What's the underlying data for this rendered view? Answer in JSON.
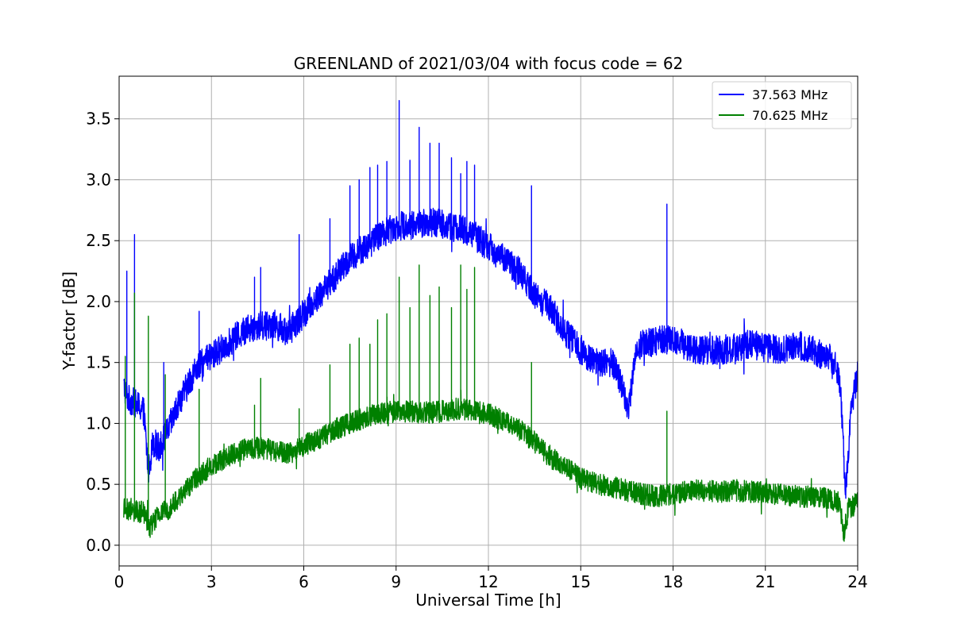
{
  "chart_data": {
    "type": "line",
    "title": "GREENLAND of 2021/03/04 with focus code = 62",
    "xlabel": "Universal Time [h]",
    "ylabel": "Y-factor [dB]",
    "xlim": [
      0,
      24
    ],
    "ylim": [
      -0.17,
      3.85
    ],
    "xticks": [
      0,
      3,
      6,
      9,
      12,
      15,
      18,
      21,
      24
    ],
    "xtick_labels": [
      "0",
      "3",
      "6",
      "9",
      "12",
      "15",
      "18",
      "21",
      "24"
    ],
    "yticks": [
      0.0,
      0.5,
      1.0,
      1.5,
      2.0,
      2.5,
      3.0,
      3.5
    ],
    "ytick_labels": [
      "0.0",
      "0.5",
      "1.0",
      "1.5",
      "2.0",
      "2.5",
      "3.0",
      "3.5"
    ],
    "grid": true,
    "legend_position": "top-right",
    "series": [
      {
        "name": "37.563 MHz",
        "color": "#0000ff",
        "noise_amplitude": 0.12,
        "x": [
          0.15,
          0.3,
          0.6,
          0.8,
          0.95,
          1.1,
          1.3,
          1.6,
          2.0,
          2.5,
          3.0,
          3.5,
          4.0,
          4.5,
          5.0,
          5.5,
          6.0,
          6.5,
          7.0,
          7.5,
          8.0,
          8.5,
          9.0,
          9.5,
          10.0,
          10.5,
          11.0,
          11.5,
          12.0,
          12.5,
          13.0,
          13.5,
          14.0,
          14.5,
          15.0,
          15.5,
          16.0,
          16.3,
          16.55,
          16.8,
          17.0,
          17.5,
          18.0,
          18.5,
          19.0,
          19.5,
          20.0,
          20.5,
          21.0,
          21.5,
          22.0,
          22.5,
          23.0,
          23.3,
          23.45,
          23.6,
          23.8,
          24.0
        ],
        "y": [
          1.3,
          1.2,
          1.15,
          1.1,
          0.6,
          0.85,
          0.8,
          0.95,
          1.2,
          1.45,
          1.55,
          1.65,
          1.75,
          1.8,
          1.82,
          1.75,
          1.9,
          2.05,
          2.2,
          2.35,
          2.45,
          2.55,
          2.62,
          2.63,
          2.65,
          2.64,
          2.6,
          2.55,
          2.45,
          2.35,
          2.25,
          2.05,
          1.95,
          1.75,
          1.6,
          1.5,
          1.5,
          1.35,
          1.1,
          1.6,
          1.65,
          1.68,
          1.7,
          1.62,
          1.6,
          1.6,
          1.62,
          1.65,
          1.62,
          1.6,
          1.65,
          1.6,
          1.55,
          1.5,
          1.25,
          0.45,
          1.15,
          1.4
        ],
        "spikes": [
          [
            0.25,
            2.25
          ],
          [
            0.5,
            2.55
          ],
          [
            1.45,
            1.5
          ],
          [
            2.6,
            1.92
          ],
          [
            4.4,
            2.2
          ],
          [
            4.6,
            2.28
          ],
          [
            5.85,
            2.55
          ],
          [
            6.85,
            2.68
          ],
          [
            7.5,
            2.95
          ],
          [
            7.8,
            3.0
          ],
          [
            8.15,
            3.1
          ],
          [
            8.4,
            3.12
          ],
          [
            8.7,
            3.15
          ],
          [
            9.1,
            3.65
          ],
          [
            9.45,
            3.16
          ],
          [
            9.75,
            3.43
          ],
          [
            10.1,
            3.3
          ],
          [
            10.4,
            3.3
          ],
          [
            10.8,
            3.18
          ],
          [
            11.1,
            3.05
          ],
          [
            11.3,
            3.15
          ],
          [
            11.55,
            3.12
          ],
          [
            13.4,
            2.95
          ],
          [
            17.8,
            2.8
          ]
        ]
      },
      {
        "name": "70.625 MHz",
        "color": "#008000",
        "noise_amplitude": 0.09,
        "x": [
          0.15,
          0.4,
          0.8,
          1.0,
          1.3,
          1.6,
          2.0,
          2.5,
          3.0,
          3.5,
          4.0,
          4.5,
          5.0,
          5.5,
          6.0,
          6.5,
          7.0,
          7.5,
          8.0,
          8.5,
          9.0,
          9.5,
          10.0,
          10.5,
          11.0,
          11.5,
          12.0,
          12.5,
          13.0,
          13.5,
          14.0,
          14.5,
          15.0,
          15.5,
          16.0,
          16.5,
          17.0,
          17.5,
          18.0,
          18.5,
          19.0,
          19.5,
          20.0,
          20.5,
          21.0,
          21.5,
          22.0,
          22.5,
          23.0,
          23.4,
          23.55,
          23.7,
          24.0
        ],
        "y": [
          0.3,
          0.28,
          0.27,
          0.15,
          0.25,
          0.3,
          0.4,
          0.55,
          0.65,
          0.72,
          0.78,
          0.8,
          0.78,
          0.75,
          0.82,
          0.88,
          0.95,
          1.0,
          1.05,
          1.08,
          1.1,
          1.1,
          1.08,
          1.1,
          1.12,
          1.1,
          1.08,
          1.02,
          0.95,
          0.85,
          0.72,
          0.65,
          0.55,
          0.5,
          0.48,
          0.45,
          0.42,
          0.4,
          0.42,
          0.45,
          0.45,
          0.44,
          0.45,
          0.44,
          0.43,
          0.42,
          0.4,
          0.4,
          0.38,
          0.35,
          0.1,
          0.3,
          0.35
        ],
        "spikes": [
          [
            0.2,
            1.55
          ],
          [
            0.5,
            2.07
          ],
          [
            0.95,
            1.88
          ],
          [
            1.5,
            1.4
          ],
          [
            2.6,
            1.28
          ],
          [
            4.4,
            1.15
          ],
          [
            4.6,
            1.37
          ],
          [
            5.85,
            1.12
          ],
          [
            6.85,
            1.48
          ],
          [
            7.5,
            1.65
          ],
          [
            7.8,
            1.7
          ],
          [
            8.15,
            1.65
          ],
          [
            8.4,
            1.85
          ],
          [
            8.7,
            1.9
          ],
          [
            9.1,
            2.2
          ],
          [
            9.45,
            1.95
          ],
          [
            9.75,
            2.3
          ],
          [
            10.1,
            2.05
          ],
          [
            10.4,
            2.12
          ],
          [
            10.8,
            1.95
          ],
          [
            11.1,
            2.3
          ],
          [
            11.3,
            2.1
          ],
          [
            11.55,
            2.28
          ],
          [
            13.4,
            1.5
          ],
          [
            17.8,
            1.1
          ]
        ]
      }
    ]
  }
}
